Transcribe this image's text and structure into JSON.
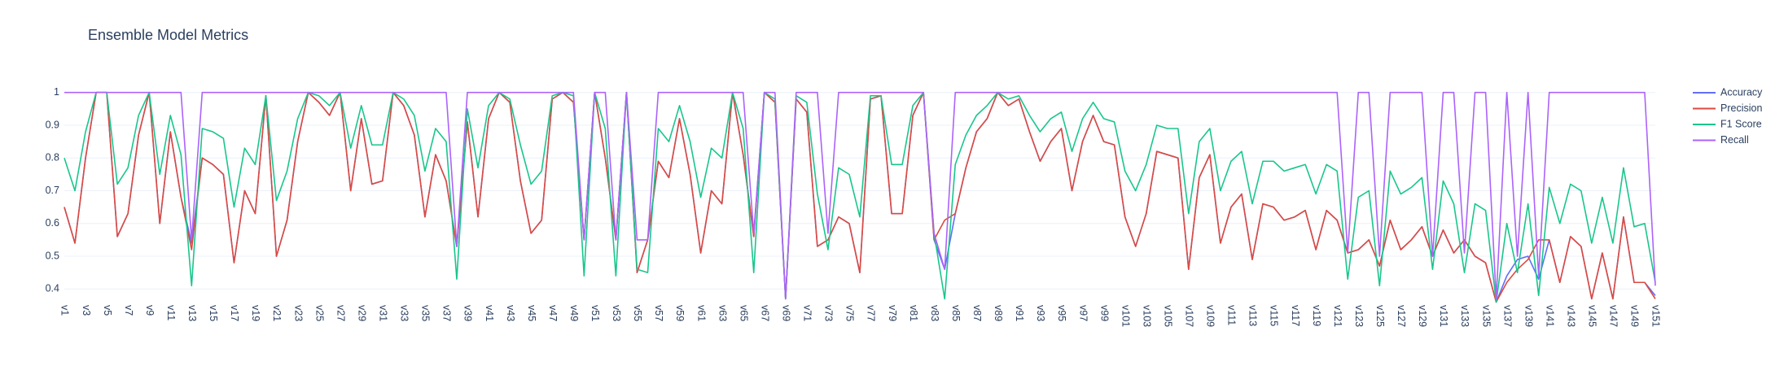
{
  "chart_data": {
    "type": "line",
    "title": "Ensemble Model Metrics",
    "categories": [
      "v1",
      null,
      "v3",
      null,
      "v5",
      null,
      "v7",
      null,
      "v9",
      null,
      "v11",
      null,
      "v13",
      null,
      "v15",
      null,
      "v17",
      null,
      "v19",
      null,
      "v21",
      null,
      "v23",
      null,
      "v25",
      null,
      "v27",
      null,
      "v29",
      null,
      "v31",
      null,
      "v33",
      null,
      "v35",
      null,
      "v37",
      null,
      "v39",
      null,
      "v41",
      null,
      "v43",
      null,
      "v45",
      null,
      "v47",
      null,
      "v49",
      null,
      "v51",
      null,
      "v53",
      null,
      "v55",
      null,
      "v57",
      null,
      "v59",
      null,
      "v61",
      null,
      "v63",
      null,
      "v65",
      null,
      "v67",
      null,
      "v69",
      null,
      "v71",
      null,
      "v73",
      null,
      "v75",
      null,
      "v77",
      null,
      "v79",
      null,
      "v81",
      null,
      "v83",
      null,
      "v85",
      null,
      "v87",
      null,
      "v89",
      null,
      "v91",
      null,
      "v93",
      null,
      "v95",
      null,
      "v97",
      null,
      "v99",
      null,
      "v101",
      null,
      "v103",
      null,
      "v105",
      null,
      "v107",
      null,
      "v109",
      null,
      "v111",
      null,
      "v113",
      null,
      "v115",
      null,
      "v117",
      null,
      "v119",
      null,
      "v121",
      null,
      "v123",
      null,
      "v125",
      null,
      "v127",
      null,
      "v129",
      null,
      "v131",
      null,
      "v133",
      null,
      "v135",
      null,
      "v137",
      null,
      "v139",
      null,
      "v141",
      null,
      "v143",
      null,
      "v145",
      null,
      "v147",
      null,
      "v149",
      null,
      "v151"
    ],
    "series": [
      {
        "name": "Accuracy",
        "color": "#636efa",
        "values": [
          0.65,
          0.54,
          0.8,
          1,
          1,
          0.56,
          0.63,
          0.87,
          1,
          0.6,
          0.88,
          0.68,
          0.54,
          0.8,
          0.78,
          0.75,
          0.48,
          0.7,
          0.63,
          0.99,
          0.5,
          0.61,
          0.85,
          1,
          0.97,
          0.93,
          1,
          0.7,
          0.92,
          0.72,
          0.73,
          1,
          0.96,
          0.87,
          0.62,
          0.81,
          0.73,
          0.53,
          0.91,
          0.62,
          0.92,
          1,
          0.97,
          0.73,
          0.57,
          0.61,
          0.98,
          1,
          0.97,
          0.55,
          1,
          0.8,
          0.55,
          1,
          0.45,
          0.55,
          0.79,
          0.74,
          0.92,
          0.75,
          0.51,
          0.7,
          0.66,
          1,
          0.81,
          0.56,
          1,
          0.97,
          0.37,
          0.98,
          0.94,
          0.53,
          0.55,
          0.62,
          0.6,
          0.45,
          0.98,
          0.99,
          0.63,
          0.63,
          0.93,
          1,
          0.55,
          0.46,
          0.63,
          0.77,
          0.88,
          0.92,
          1,
          0.96,
          0.98,
          0.88,
          0.79,
          0.85,
          0.89,
          0.7,
          0.85,
          0.93,
          0.85,
          0.84,
          0.62,
          0.53,
          0.63,
          0.82,
          0.81,
          0.8,
          0.46,
          0.74,
          0.81,
          0.54,
          0.65,
          0.69,
          0.49,
          0.66,
          0.65,
          0.61,
          0.62,
          0.64,
          0.52,
          0.64,
          0.61,
          0.51,
          0.52,
          0.55,
          0.47,
          0.61,
          0.52,
          0.55,
          0.59,
          0.5,
          0.58,
          0.51,
          0.55,
          0.5,
          0.48,
          0.36,
          0.44,
          0.49,
          0.5,
          0.43,
          0.55,
          0.42,
          0.56,
          0.53,
          0.37,
          0.51,
          0.37,
          0.62,
          0.42,
          0.42,
          0.38
        ]
      },
      {
        "name": "Precision",
        "color": "#dc4a3f",
        "values": [
          0.65,
          0.54,
          0.8,
          1,
          1,
          0.56,
          0.63,
          0.87,
          1,
          0.6,
          0.88,
          0.68,
          0.52,
          0.8,
          0.78,
          0.75,
          0.48,
          0.7,
          0.63,
          0.99,
          0.5,
          0.61,
          0.85,
          1,
          0.97,
          0.93,
          1,
          0.7,
          0.92,
          0.72,
          0.73,
          1,
          0.96,
          0.87,
          0.62,
          0.81,
          0.73,
          0.53,
          0.91,
          0.62,
          0.92,
          1,
          0.97,
          0.73,
          0.57,
          0.61,
          0.98,
          1,
          0.97,
          0.55,
          1,
          0.8,
          0.55,
          1,
          0.45,
          0.55,
          0.79,
          0.74,
          0.92,
          0.75,
          0.51,
          0.7,
          0.66,
          1,
          0.81,
          0.56,
          1,
          0.97,
          0.37,
          0.98,
          0.94,
          0.53,
          0.55,
          0.62,
          0.6,
          0.45,
          0.98,
          0.99,
          0.63,
          0.63,
          0.93,
          1,
          0.55,
          0.61,
          0.63,
          0.77,
          0.88,
          0.92,
          1,
          0.96,
          0.98,
          0.88,
          0.79,
          0.85,
          0.89,
          0.7,
          0.85,
          0.93,
          0.85,
          0.84,
          0.62,
          0.53,
          0.63,
          0.82,
          0.81,
          0.8,
          0.46,
          0.74,
          0.81,
          0.54,
          0.65,
          0.69,
          0.49,
          0.66,
          0.65,
          0.61,
          0.62,
          0.64,
          0.52,
          0.64,
          0.61,
          0.51,
          0.52,
          0.55,
          0.47,
          0.61,
          0.52,
          0.55,
          0.59,
          0.5,
          0.58,
          0.51,
          0.55,
          0.5,
          0.48,
          0.36,
          0.42,
          0.46,
          0.49,
          0.55,
          0.55,
          0.42,
          0.56,
          0.53,
          0.37,
          0.51,
          0.37,
          0.62,
          0.42,
          0.42,
          0.37
        ]
      },
      {
        "name": "F1 Score",
        "color": "#19c68c",
        "values": [
          0.8,
          0.7,
          0.88,
          1,
          1,
          0.72,
          0.77,
          0.93,
          1,
          0.75,
          0.93,
          0.81,
          0.41,
          0.89,
          0.88,
          0.86,
          0.65,
          0.83,
          0.78,
          0.99,
          0.67,
          0.76,
          0.92,
          1,
          0.99,
          0.96,
          1,
          0.83,
          0.96,
          0.84,
          0.84,
          1,
          0.98,
          0.93,
          0.76,
          0.89,
          0.85,
          0.43,
          0.95,
          0.77,
          0.96,
          1,
          0.98,
          0.84,
          0.72,
          0.76,
          0.99,
          1,
          0.99,
          0.44,
          1,
          0.89,
          0.44,
          1,
          0.46,
          0.45,
          0.89,
          0.85,
          0.96,
          0.85,
          0.68,
          0.83,
          0.8,
          1,
          0.89,
          0.45,
          1,
          0.98,
          0.37,
          0.99,
          0.97,
          0.69,
          0.52,
          0.77,
          0.75,
          0.62,
          0.99,
          0.99,
          0.78,
          0.78,
          0.96,
          1,
          0.57,
          0.37,
          0.78,
          0.87,
          0.93,
          0.96,
          1,
          0.98,
          0.99,
          0.93,
          0.88,
          0.92,
          0.94,
          0.82,
          0.92,
          0.97,
          0.92,
          0.91,
          0.76,
          0.7,
          0.78,
          0.9,
          0.89,
          0.89,
          0.63,
          0.85,
          0.89,
          0.7,
          0.79,
          0.82,
          0.66,
          0.79,
          0.79,
          0.76,
          0.77,
          0.78,
          0.69,
          0.78,
          0.76,
          0.43,
          0.68,
          0.7,
          0.41,
          0.76,
          0.69,
          0.71,
          0.74,
          0.46,
          0.73,
          0.66,
          0.45,
          0.66,
          0.64,
          0.36,
          0.6,
          0.45,
          0.66,
          0.38,
          0.71,
          0.6,
          0.72,
          0.7,
          0.54,
          0.68,
          0.54,
          0.77,
          0.59,
          0.6,
          0.42
        ]
      },
      {
        "name": "Recall",
        "color": "#ab63fa",
        "values": [
          1,
          1,
          1,
          1,
          1,
          1,
          1,
          1,
          1,
          1,
          1,
          1,
          0.55,
          1,
          1,
          1,
          1,
          1,
          1,
          1,
          1,
          1,
          1,
          1,
          1,
          1,
          1,
          1,
          1,
          1,
          1,
          1,
          1,
          1,
          1,
          1,
          1,
          0.53,
          1,
          1,
          1,
          1,
          1,
          1,
          1,
          1,
          1,
          1,
          1,
          0.55,
          1,
          1,
          0.55,
          1,
          0.55,
          0.55,
          1,
          1,
          1,
          1,
          1,
          1,
          1,
          1,
          1,
          0.57,
          1,
          1,
          0.37,
          1,
          1,
          1,
          0.57,
          1,
          1,
          1,
          1,
          1,
          1,
          1,
          1,
          1,
          0.57,
          0.46,
          1,
          1,
          1,
          1,
          1,
          1,
          1,
          1,
          1,
          1,
          1,
          1,
          1,
          1,
          1,
          1,
          1,
          1,
          1,
          1,
          1,
          1,
          1,
          1,
          1,
          1,
          1,
          1,
          1,
          1,
          1,
          1,
          1,
          1,
          1,
          1,
          1,
          0.51,
          1,
          1,
          0.5,
          1,
          1,
          1,
          1,
          0.5,
          1,
          1,
          0.51,
          1,
          1,
          0.37,
          1,
          0.5,
          1,
          0.44,
          1,
          1,
          1,
          1,
          1,
          1,
          1,
          1,
          1,
          1,
          0.41
        ]
      }
    ],
    "ylim": [
      0.366,
      1.034
    ],
    "yticks": [
      0.4,
      0.5,
      0.6,
      0.7,
      0.8,
      0.9,
      1
    ],
    "grid": true
  }
}
